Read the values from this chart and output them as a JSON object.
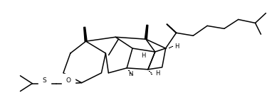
{
  "bg_color": "#ffffff",
  "line_color": "#000000",
  "line_width": 1.1,
  "label_fontsize": 6.0,
  "figsize": [
    3.82,
    1.55
  ],
  "dpi": 100,
  "xlim": [
    0,
    382
  ],
  "ylim": [
    0,
    155
  ]
}
